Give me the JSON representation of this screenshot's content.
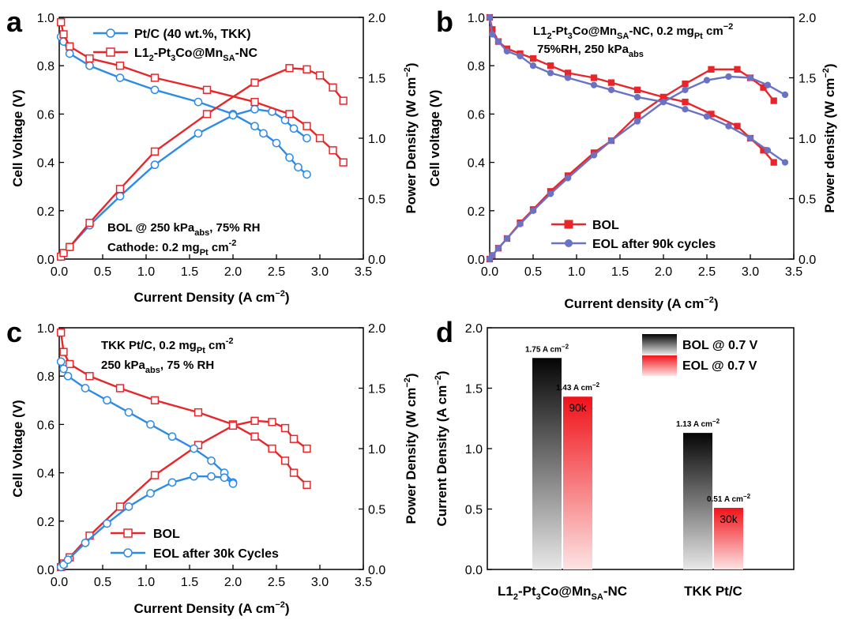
{
  "colors": {
    "red": "#e8262a",
    "blue": "#2d8be6",
    "purple": "#6a72c4",
    "black": "#000000"
  },
  "chart_data": [
    {
      "panel": "a",
      "type": "line",
      "xlabel": "Current Density (A cm",
      "xlabel_sup": "−2",
      "xlabel_end": ")",
      "ylabel_left": "Cell Voltage (V)",
      "ylabel_right": "Power Density (W cm",
      "ylabel_right_sup": "−2",
      "ylabel_right_end": ")",
      "xlim": [
        0,
        3.5
      ],
      "ylim_left": [
        0,
        1.0
      ],
      "ylim_right": [
        0,
        2.0
      ],
      "xticks": [
        "0.0",
        "0.5",
        "1.0",
        "1.5",
        "2.0",
        "2.5",
        "3.0",
        "3.5"
      ],
      "yticks_left": [
        "0.0",
        "0.2",
        "0.4",
        "0.6",
        "0.8",
        "1.0"
      ],
      "yticks_right": [
        "0.0",
        "0.5",
        "1.0",
        "1.5",
        "2.0"
      ],
      "legend": [
        {
          "label": "Pt/C (40 wt.%, TKK)",
          "color": "#2d8be6",
          "marker": "circle"
        },
        {
          "label": "L1",
          "sub": "2",
          "label2": "-Pt",
          "sub2": "3",
          "label3": "Co@Mn",
          "sub3": "SA",
          "label4": "-NC",
          "color": "#e8262a",
          "marker": "square"
        }
      ],
      "notes": [
        {
          "text": "BOL @ 250 kPa",
          "sub": "abs",
          "text2": ", 75% RH"
        },
        {
          "text": "Cathode: 0.2 mg",
          "sub": "Pt",
          "text2": " cm",
          "sup": "-2"
        }
      ],
      "series": [
        {
          "name": "Pt/C (40 wt.%, TKK)",
          "axis": "left",
          "color": "#2d8be6",
          "marker": "circle",
          "x": [
            0.02,
            0.05,
            0.12,
            0.35,
            0.7,
            1.1,
            1.6,
            2.0,
            2.25,
            2.35,
            2.5,
            2.65,
            2.75,
            2.85
          ],
          "y": [
            0.92,
            0.9,
            0.85,
            0.8,
            0.75,
            0.7,
            0.65,
            0.6,
            0.55,
            0.52,
            0.48,
            0.42,
            0.38,
            0.35
          ]
        },
        {
          "name": "Pt/C (40 wt.%, TKK)",
          "axis": "right",
          "color": "#2d8be6",
          "marker": "circle",
          "x": [
            0.02,
            0.05,
            0.12,
            0.35,
            0.7,
            1.1,
            1.6,
            2.0,
            2.25,
            2.45,
            2.6,
            2.7,
            2.85
          ],
          "y": [
            0.02,
            0.05,
            0.1,
            0.28,
            0.52,
            0.78,
            1.04,
            1.19,
            1.24,
            1.22,
            1.15,
            1.08,
            1.0
          ]
        },
        {
          "name": "L1",
          "axis": "left",
          "color": "#e8262a",
          "marker": "square",
          "x": [
            0.02,
            0.05,
            0.12,
            0.35,
            0.7,
            1.1,
            1.7,
            2.25,
            2.65,
            2.85,
            3.0,
            3.15,
            3.27
          ],
          "y": [
            0.98,
            0.93,
            0.88,
            0.83,
            0.8,
            0.75,
            0.7,
            0.65,
            0.6,
            0.55,
            0.5,
            0.45,
            0.4
          ]
        },
        {
          "name": "L1",
          "axis": "right",
          "color": "#e8262a",
          "marker": "square",
          "x": [
            0.02,
            0.05,
            0.12,
            0.35,
            0.7,
            1.1,
            1.7,
            2.25,
            2.65,
            2.85,
            3.0,
            3.15,
            3.27
          ],
          "y": [
            0.02,
            0.05,
            0.1,
            0.3,
            0.58,
            0.89,
            1.2,
            1.46,
            1.58,
            1.57,
            1.52,
            1.42,
            1.31
          ]
        }
      ]
    },
    {
      "panel": "b",
      "type": "line",
      "xlabel": "Current density (A cm",
      "xlabel_sup": "−2",
      "xlabel_end": ")",
      "ylabel_left": "Cell voltage (V)",
      "ylabel_right": "Power density (W cm",
      "ylabel_right_sup": "−2",
      "ylabel_right_end": ")",
      "xlim": [
        0,
        3.5
      ],
      "ylim_left": [
        0,
        1.0
      ],
      "ylim_right": [
        0,
        2.0
      ],
      "xticks": [
        "0.0",
        "0.5",
        "1.0",
        "1.5",
        "2.0",
        "2.5",
        "3.0",
        "3.5"
      ],
      "yticks_left": [
        "0.0",
        "0.2",
        "0.4",
        "0.6",
        "0.8",
        "1.0"
      ],
      "yticks_right": [
        "0.0",
        "0.5",
        "1.0",
        "1.5",
        "2.0"
      ],
      "legend": [
        {
          "label": "BOL",
          "color": "#e8262a",
          "marker": "square"
        },
        {
          "label": "EOL after 90k cycles",
          "color": "#6a72c4",
          "marker": "circle"
        }
      ],
      "notes": [
        {
          "text": "L1",
          "sub": "2",
          "text2": "-Pt",
          "sub2": "3",
          "text3": "Co@Mn",
          "sub3": "SA",
          "text4": "-NC, 0.2 mg",
          "sub4": "Pt",
          "text5": " cm",
          "sup": "−2"
        },
        {
          "text": "75%RH, 250 kPa",
          "sub": "abs"
        }
      ],
      "series": [
        {
          "name": "BOL",
          "axis": "left",
          "color": "#e8262a",
          "marker": "square",
          "x": [
            0.0,
            0.03,
            0.1,
            0.2,
            0.35,
            0.5,
            0.7,
            0.9,
            1.2,
            1.4,
            1.7,
            2.0,
            2.25,
            2.55,
            2.85,
            3.0,
            3.15,
            3.27
          ],
          "y": [
            1.0,
            0.95,
            0.9,
            0.87,
            0.85,
            0.83,
            0.8,
            0.77,
            0.75,
            0.73,
            0.7,
            0.67,
            0.65,
            0.6,
            0.55,
            0.5,
            0.45,
            0.4
          ]
        },
        {
          "name": "BOL",
          "axis": "right",
          "color": "#e8262a",
          "marker": "square",
          "x": [
            0.0,
            0.03,
            0.1,
            0.2,
            0.35,
            0.5,
            0.7,
            0.9,
            1.2,
            1.4,
            1.7,
            2.0,
            2.25,
            2.55,
            2.85,
            3.0,
            3.15,
            3.27
          ],
          "y": [
            0.0,
            0.03,
            0.09,
            0.17,
            0.3,
            0.41,
            0.56,
            0.69,
            0.88,
            0.98,
            1.19,
            1.34,
            1.45,
            1.57,
            1.57,
            1.5,
            1.42,
            1.31
          ]
        },
        {
          "name": "EOL after 90k cycles",
          "axis": "left",
          "color": "#6a72c4",
          "marker": "circle",
          "x": [
            0.0,
            0.03,
            0.1,
            0.2,
            0.35,
            0.5,
            0.7,
            0.9,
            1.2,
            1.4,
            1.7,
            2.0,
            2.25,
            2.5,
            2.75,
            3.0,
            3.2,
            3.4
          ],
          "y": [
            1.0,
            0.93,
            0.9,
            0.86,
            0.84,
            0.8,
            0.77,
            0.75,
            0.72,
            0.7,
            0.67,
            0.65,
            0.62,
            0.59,
            0.55,
            0.5,
            0.45,
            0.4
          ]
        },
        {
          "name": "EOL after 90k cycles",
          "axis": "right",
          "color": "#6a72c4",
          "marker": "circle",
          "x": [
            0.0,
            0.03,
            0.1,
            0.2,
            0.35,
            0.5,
            0.7,
            0.9,
            1.2,
            1.4,
            1.7,
            2.0,
            2.25,
            2.5,
            2.75,
            3.0,
            3.2,
            3.4
          ],
          "y": [
            0.0,
            0.03,
            0.09,
            0.17,
            0.29,
            0.4,
            0.54,
            0.67,
            0.86,
            0.98,
            1.14,
            1.3,
            1.4,
            1.48,
            1.51,
            1.5,
            1.44,
            1.36
          ]
        }
      ]
    },
    {
      "panel": "c",
      "type": "line",
      "xlabel": "Current Density (A cm",
      "xlabel_sup": "−2",
      "xlabel_end": ")",
      "ylabel_left": "Cell Voltage (V)",
      "ylabel_right": "Power Density (W cm",
      "ylabel_right_sup": "−2",
      "ylabel_right_end": ")",
      "xlim": [
        0,
        3.5
      ],
      "ylim_left": [
        0,
        1.0
      ],
      "ylim_right": [
        0,
        2.0
      ],
      "xticks": [
        "0.0",
        "0.5",
        "1.0",
        "1.5",
        "2.0",
        "2.5",
        "3.0",
        "3.5"
      ],
      "yticks_left": [
        "0.0",
        "0.2",
        "0.4",
        "0.6",
        "0.8",
        "1.0"
      ],
      "yticks_right": [
        "0.0",
        "0.5",
        "1.0",
        "1.5",
        "2.0"
      ],
      "legend": [
        {
          "label": "BOL",
          "color": "#e8262a",
          "marker": "square"
        },
        {
          "label": "EOL after 30k Cycles",
          "color": "#2d8be6",
          "marker": "circle"
        }
      ],
      "notes": [
        {
          "text": "TKK Pt/C, 0.2 mg",
          "sub": "Pt",
          "text2": " cm",
          "sup": "-2"
        },
        {
          "text": "250 kPa",
          "sub": "abs",
          "text2": ", 75 % RH"
        }
      ],
      "series": [
        {
          "name": "BOL",
          "axis": "left",
          "color": "#e8262a",
          "marker": "square",
          "x": [
            0.02,
            0.05,
            0.12,
            0.35,
            0.7,
            1.1,
            1.6,
            2.0,
            2.25,
            2.45,
            2.6,
            2.7,
            2.85
          ],
          "y": [
            0.98,
            0.9,
            0.85,
            0.8,
            0.75,
            0.7,
            0.65,
            0.6,
            0.55,
            0.5,
            0.45,
            0.4,
            0.35
          ]
        },
        {
          "name": "BOL",
          "axis": "right",
          "color": "#e8262a",
          "marker": "square",
          "x": [
            0.02,
            0.05,
            0.12,
            0.35,
            0.7,
            1.1,
            1.6,
            2.0,
            2.25,
            2.45,
            2.6,
            2.7,
            2.85
          ],
          "y": [
            0.02,
            0.05,
            0.1,
            0.28,
            0.52,
            0.78,
            1.03,
            1.19,
            1.23,
            1.22,
            1.17,
            1.08,
            1.0
          ]
        },
        {
          "name": "EOL after 30k Cycles",
          "axis": "left",
          "color": "#2d8be6",
          "marker": "circle",
          "x": [
            0.02,
            0.05,
            0.1,
            0.3,
            0.55,
            0.8,
            1.05,
            1.3,
            1.55,
            1.75,
            1.9,
            2.0
          ],
          "y": [
            0.86,
            0.83,
            0.8,
            0.75,
            0.7,
            0.65,
            0.6,
            0.55,
            0.5,
            0.45,
            0.4,
            0.36
          ]
        },
        {
          "name": "EOL after 30k Cycles",
          "axis": "right",
          "color": "#2d8be6",
          "marker": "circle",
          "x": [
            0.02,
            0.05,
            0.1,
            0.3,
            0.55,
            0.8,
            1.05,
            1.3,
            1.55,
            1.75,
            1.9,
            2.0
          ],
          "y": [
            0.02,
            0.04,
            0.08,
            0.22,
            0.38,
            0.52,
            0.63,
            0.72,
            0.77,
            0.77,
            0.76,
            0.71
          ]
        }
      ]
    },
    {
      "panel": "d",
      "type": "bar",
      "ylabel": "Current Density (A cm",
      "ylabel_sup": "−2",
      "ylabel_end": ")",
      "ylim": [
        0,
        2.0
      ],
      "yticks": [
        "0.0",
        "0.5",
        "1.0",
        "1.5",
        "2.0"
      ],
      "categories": [
        {
          "label": "L1",
          "sub": "2",
          "label2": "-Pt",
          "sub2": "3",
          "label3": "Co@Mn",
          "sub3": "SA",
          "label4": "-NC"
        },
        {
          "label": "TKK Pt/C"
        }
      ],
      "series": [
        {
          "name": "BOL @ 0.7 V",
          "style": "black-gradient",
          "values": [
            1.75,
            1.13
          ],
          "labels": [
            "1.75 A cm",
            "1.13 A cm"
          ],
          "label_sup": "−2",
          "bar_text": [
            "",
            ""
          ]
        },
        {
          "name": "EOL @ 0.7 V",
          "style": "red-gradient",
          "values": [
            1.43,
            0.51
          ],
          "labels": [
            "1.43 A cm",
            "0.51 A cm"
          ],
          "label_sup": "−2",
          "bar_text": [
            "90k",
            "30k"
          ]
        }
      ],
      "legend_position": "top-right"
    }
  ]
}
